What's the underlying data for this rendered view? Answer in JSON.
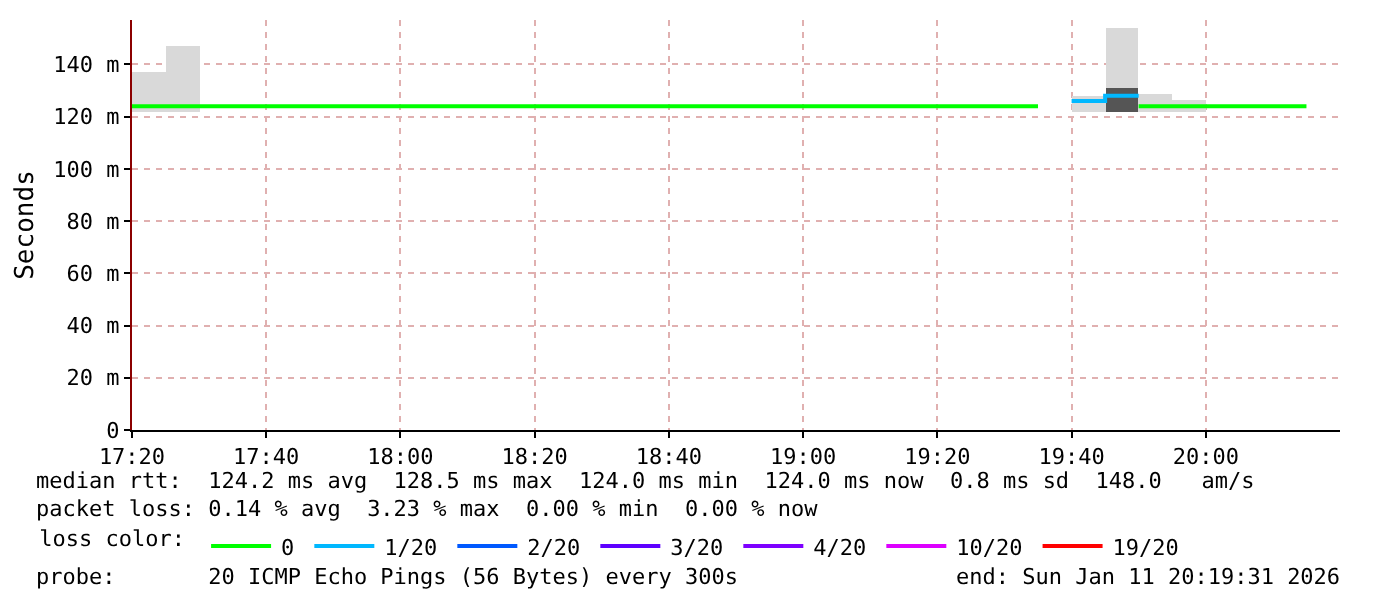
{
  "chart_data": {
    "type": "line",
    "ylabel": "Seconds",
    "xlim": [
      17.3333,
      20.3333
    ],
    "xticks": [
      {
        "value": 17.3333,
        "label": "17:20"
      },
      {
        "value": 17.6667,
        "label": "17:40"
      },
      {
        "value": 18.0,
        "label": "18:00"
      },
      {
        "value": 18.3333,
        "label": "18:20"
      },
      {
        "value": 18.6667,
        "label": "18:40"
      },
      {
        "value": 19.0,
        "label": "19:00"
      },
      {
        "value": 19.3333,
        "label": "19:20"
      },
      {
        "value": 19.6667,
        "label": "19:40"
      },
      {
        "value": 20.0,
        "label": "20:00"
      }
    ],
    "ylim": [
      0,
      157
    ],
    "yticks": [
      {
        "value": 0,
        "label": "0"
      },
      {
        "value": 20,
        "label": "20 m"
      },
      {
        "value": 40,
        "label": "40 m"
      },
      {
        "value": 60,
        "label": "60 m"
      },
      {
        "value": 80,
        "label": "80 m"
      },
      {
        "value": 100,
        "label": "100 m"
      },
      {
        "value": 120,
        "label": "120 m"
      },
      {
        "value": 140,
        "label": "140 m"
      }
    ],
    "grid": true,
    "legend": "bottom left",
    "legend_title": "loss color:",
    "line_style": "solid",
    "marker": "none",
    "series": [
      {
        "type": "bar",
        "color": "#d9d9d9",
        "x": [
          17.375,
          17.4583,
          19.7083,
          19.7917,
          19.875,
          19.9583
        ],
        "base": [
          122,
          122,
          122,
          122,
          122,
          122
        ],
        "values": [
          15,
          25,
          6,
          32,
          7,
          4
        ]
      },
      {
        "type": "bar",
        "color": "#555555",
        "x": [
          19.7917
        ],
        "base": [
          122
        ],
        "values": [
          9
        ]
      },
      {
        "name": "0",
        "color": "#00ff00",
        "x": [
          17.3333,
          17.4167,
          17.5,
          17.5833,
          17.6667,
          17.75,
          17.8333,
          17.9167,
          18.0,
          18.0833,
          18.1667,
          18.25,
          18.3333,
          18.4167,
          18.5,
          18.5833,
          18.6667,
          18.75,
          18.8333,
          18.9167,
          19.0,
          19.0833,
          19.1667,
          19.25,
          19.3333,
          19.4167,
          19.5,
          19.5833,
          19.6667,
          19.75,
          19.8333,
          19.9167,
          20.0,
          20.0833,
          20.1667,
          20.25
        ],
        "values": [
          124,
          124,
          124,
          124,
          124,
          124,
          124,
          124,
          124,
          124,
          124,
          124,
          124,
          124,
          124,
          124,
          124,
          124,
          124,
          124,
          124,
          124,
          124,
          124,
          124,
          124,
          124,
          124,
          null,
          null,
          124,
          124,
          124,
          124,
          124,
          124
        ]
      },
      {
        "name": "1/20",
        "color": "#00b8ff",
        "x": [
          19.6667,
          19.75,
          19.8333
        ],
        "values": [
          126,
          128,
          128
        ]
      },
      {
        "name": "2/20",
        "color": "#0059ff"
      },
      {
        "name": "3/20",
        "color": "#5e00ff"
      },
      {
        "name": "4/20",
        "color": "#7e00ff"
      },
      {
        "name": "10/20",
        "color": "#dd00ff"
      },
      {
        "name": "19/20",
        "color": "#ff0000"
      }
    ],
    "annotations": [
      "median rtt:  124.2 ms avg  128.5 ms max  124.0 ms min  124.0 ms now  0.8 ms sd  148.0   am/s",
      "packet loss: 0.14 % avg  3.23 % max  0.00 % min  0.00 % now",
      "probe:       20 ICMP Echo Pings (56 Bytes) every 300s",
      "end: Sun Jan 11 20:19:31 2026"
    ]
  }
}
